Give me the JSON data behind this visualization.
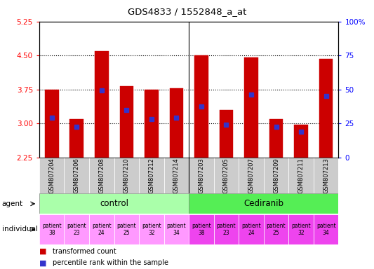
{
  "title": "GDS4833 / 1552848_a_at",
  "samples": [
    "GSM807204",
    "GSM807206",
    "GSM807208",
    "GSM807210",
    "GSM807212",
    "GSM807214",
    "GSM807203",
    "GSM807205",
    "GSM807207",
    "GSM807209",
    "GSM807211",
    "GSM807213"
  ],
  "bar_tops": [
    3.75,
    3.1,
    4.6,
    3.83,
    3.75,
    3.78,
    4.5,
    3.3,
    4.45,
    3.1,
    2.97,
    4.42
  ],
  "percentile_values": [
    3.13,
    2.93,
    3.73,
    3.3,
    3.1,
    3.13,
    3.38,
    2.97,
    3.63,
    2.92,
    2.82,
    3.6
  ],
  "bar_bottom": 2.25,
  "ylim_left": [
    2.25,
    5.25
  ],
  "yticks_left": [
    2.25,
    3.0,
    3.75,
    4.5,
    5.25
  ],
  "ylim_right": [
    0,
    100
  ],
  "yticks_right": [
    0,
    25,
    50,
    75,
    100
  ],
  "yticklabels_right": [
    "0",
    "25",
    "50",
    "75",
    "100%"
  ],
  "bar_color": "#cc0000",
  "percentile_color": "#3333cc",
  "bar_width": 0.55,
  "agent_control_color": "#aaffaa",
  "agent_cediranib_color": "#55ee55",
  "individual_control_color": "#ff99ff",
  "individual_cediranib_color": "#ee44ee",
  "patients": [
    "patient\n38",
    "patient\n23",
    "patient\n24",
    "patient\n25",
    "patient\n32",
    "patient\n34",
    "patient\n38",
    "patient\n23",
    "patient\n24",
    "patient\n25",
    "patient\n32",
    "patient\n34"
  ],
  "legend_red_label": "transformed count",
  "legend_blue_label": "percentile rank within the sample"
}
